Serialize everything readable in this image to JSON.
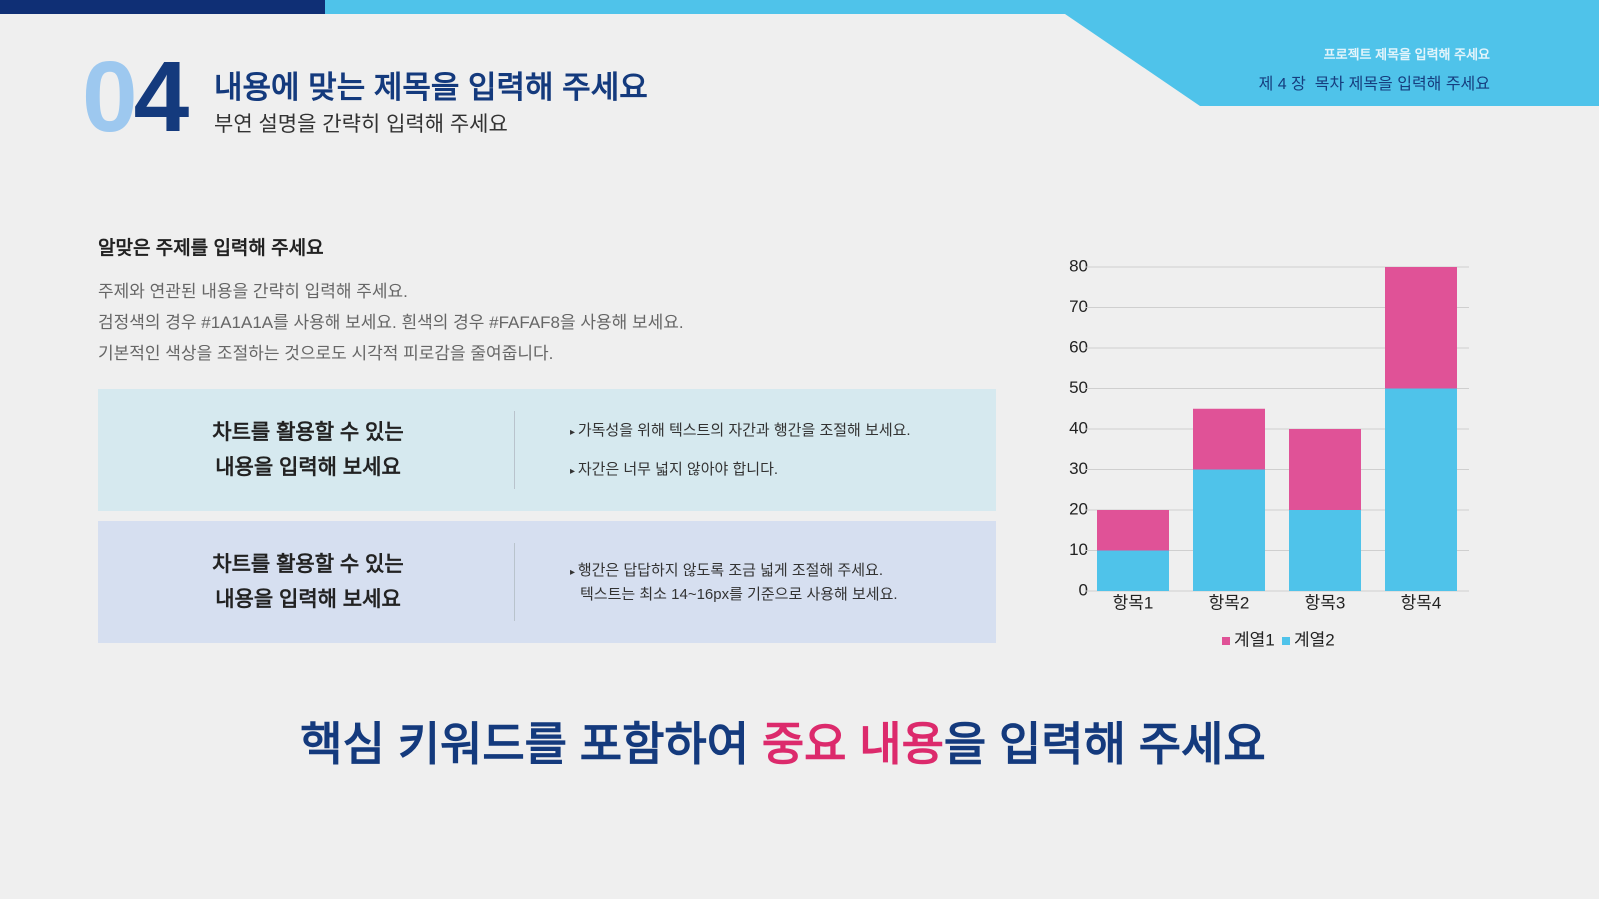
{
  "header": {
    "number": [
      "0",
      "4"
    ],
    "title": "내용에 맞는 제목을 입력해 주세요",
    "subtitle": "부연 설명을 간략히 입력해 주세요",
    "project": "프로젝트 제목을 입력해 주세요",
    "chapter": "제 4 장  목차 제목을 입력해 주세요"
  },
  "section": {
    "heading": "알맞은 주제를 입력해 주세요",
    "lines": [
      "주제와 연관된 내용을 간략히 입력해 주세요.",
      "검정색의 경우 #1A1A1A를 사용해 보세요. 흰색의 경우 #FAFAF8을 사용해 보세요.",
      "기본적인 색상을 조절하는 것으로도 시각적 피로감을 줄여줍니다."
    ]
  },
  "boxes": [
    {
      "heading": [
        "차트를 활용할 수 있는",
        "내용을 입력해 보세요"
      ],
      "bullets": [
        [
          "가독성을 위해 텍스트의 자간과 행간을 조절해 보세요."
        ],
        [
          "자간은 너무 넓지 않아야 합니다."
        ]
      ]
    },
    {
      "heading": [
        "차트를 활용할 수 있는",
        "내용을 입력해 보세요"
      ],
      "bullets": [
        [
          "행간은 답답하지 않도록 조금 넓게 조절해 주세요.",
          "텍스트는 최소 14~16px를 기준으로 사용해 보세요."
        ]
      ]
    }
  ],
  "footer": {
    "parts": [
      {
        "text": "핵심 키워드를 포함하여 ",
        "color": "#143a7d"
      },
      {
        "text": "중요 내용",
        "color": "#dc2a6c"
      },
      {
        "text": "을 입력해 주세요",
        "color": "#143a7d"
      }
    ]
  },
  "chart_data": {
    "type": "stacked_bar",
    "categories": [
      "항목1",
      "항목2",
      "항목3",
      "항목4"
    ],
    "series": [
      {
        "name": "계열1",
        "color": "#e05297",
        "values": [
          10,
          15,
          20,
          30
        ]
      },
      {
        "name": "계열2",
        "color": "#4fc3ea",
        "values": [
          10,
          30,
          20,
          50
        ]
      }
    ],
    "ylim": [
      0,
      80
    ],
    "yticks": [
      0,
      10,
      20,
      30,
      40,
      50,
      60,
      70,
      80
    ],
    "grid": true
  }
}
